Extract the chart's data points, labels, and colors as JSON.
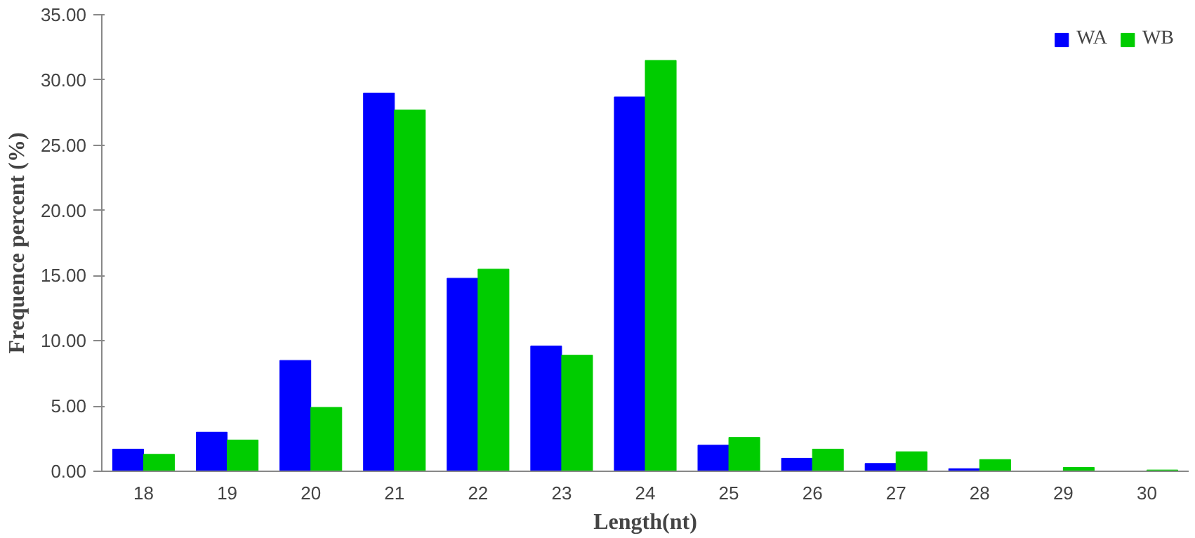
{
  "chart_data": {
    "type": "bar",
    "xlabel": "Length(nt)",
    "ylabel": "Frequence percent (%)",
    "categories": [
      "18",
      "19",
      "20",
      "21",
      "22",
      "23",
      "24",
      "25",
      "26",
      "27",
      "28",
      "29",
      "30"
    ],
    "series": [
      {
        "name": "WA",
        "color": "#0000ff",
        "values": [
          1.7,
          3.0,
          8.5,
          29.0,
          14.8,
          9.6,
          28.7,
          2.0,
          1.0,
          0.6,
          0.2,
          0,
          0
        ]
      },
      {
        "name": "WB",
        "color": "#00cc00",
        "values": [
          1.3,
          2.4,
          4.9,
          27.7,
          15.5,
          8.9,
          31.5,
          2.6,
          1.7,
          1.5,
          0.9,
          0.3,
          0.1
        ]
      }
    ],
    "ylim": [
      0,
      35
    ],
    "yticks": [
      {
        "value": 0,
        "label": "0.00"
      },
      {
        "value": 5,
        "label": "5.00"
      },
      {
        "value": 10,
        "label": "10.00"
      },
      {
        "value": 15,
        "label": "15.00"
      },
      {
        "value": 20,
        "label": "20.00"
      },
      {
        "value": 25,
        "label": "25.00"
      },
      {
        "value": 30,
        "label": "30.00"
      },
      {
        "value": 35,
        "label": "35.00"
      }
    ],
    "grid": false,
    "legend": "top right"
  }
}
